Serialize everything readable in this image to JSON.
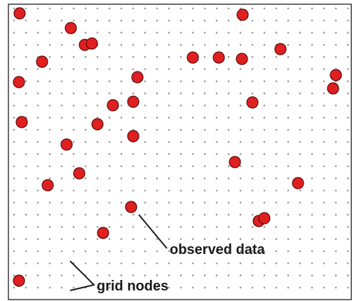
{
  "labels": {
    "observed": "observed data",
    "grid": "grid nodes"
  },
  "colors": {
    "point_fill": "#e02020",
    "point_stroke": "#5a0a0a",
    "grid_dot": "#9a9a9a",
    "frame": "#3a3a3a",
    "text": "#1a1a1a"
  }
}
